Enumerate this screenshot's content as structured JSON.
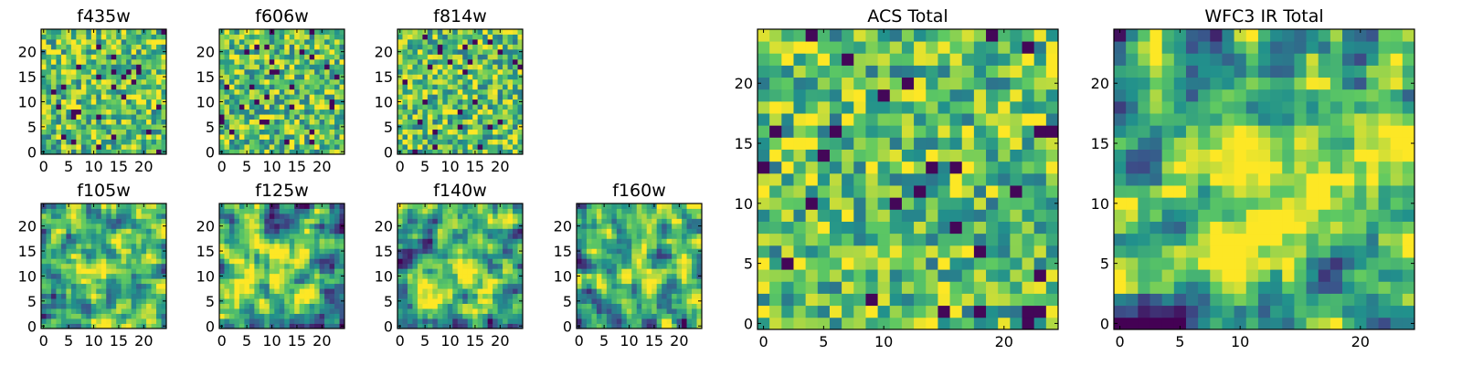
{
  "colormap": [
    "#440154",
    "#3b528b",
    "#21918c",
    "#5ec962",
    "#fde725"
  ],
  "chart_data": [
    {
      "type": "heatmap",
      "title": "f435w",
      "grid_size": 25,
      "xticks": [
        0,
        5,
        10,
        15,
        20
      ],
      "yticks": [
        0,
        5,
        10,
        15,
        20
      ],
      "xlim": [
        0,
        24
      ],
      "ylim": [
        0,
        24
      ],
      "texture": "noisy",
      "seed": 11
    },
    {
      "type": "heatmap",
      "title": "f606w",
      "grid_size": 25,
      "xticks": [
        0,
        5,
        10,
        15,
        20
      ],
      "yticks": [
        0,
        5,
        10,
        15,
        20
      ],
      "xlim": [
        0,
        24
      ],
      "ylim": [
        0,
        24
      ],
      "texture": "noisy",
      "seed": 23
    },
    {
      "type": "heatmap",
      "title": "f814w",
      "grid_size": 25,
      "xticks": [
        0,
        5,
        10,
        15,
        20
      ],
      "yticks": [
        0,
        5,
        10,
        15,
        20
      ],
      "xlim": [
        0,
        24
      ],
      "ylim": [
        0,
        24
      ],
      "texture": "noisy",
      "seed": 37
    },
    {
      "type": "heatmap",
      "title": "f105w",
      "grid_size": 25,
      "xticks": [
        0,
        5,
        10,
        15,
        20
      ],
      "yticks": [
        0,
        5,
        10,
        15,
        20
      ],
      "xlim": [
        0,
        24
      ],
      "ylim": [
        0,
        24
      ],
      "texture": "smooth",
      "seed": 41
    },
    {
      "type": "heatmap",
      "title": "f125w",
      "grid_size": 25,
      "xticks": [
        0,
        5,
        10,
        15,
        20
      ],
      "yticks": [
        0,
        5,
        10,
        15,
        20
      ],
      "xlim": [
        0,
        24
      ],
      "ylim": [
        0,
        24
      ],
      "texture": "smooth",
      "seed": 53
    },
    {
      "type": "heatmap",
      "title": "f140w",
      "grid_size": 25,
      "xticks": [
        0,
        5,
        10,
        15,
        20
      ],
      "yticks": [
        0,
        5,
        10,
        15,
        20
      ],
      "xlim": [
        0,
        24
      ],
      "ylim": [
        0,
        24
      ],
      "texture": "smooth",
      "seed": 67
    },
    {
      "type": "heatmap",
      "title": "f160w",
      "grid_size": 25,
      "xticks": [
        0,
        5,
        10,
        15,
        20
      ],
      "yticks": [
        0,
        5,
        10,
        15,
        20
      ],
      "xlim": [
        0,
        24
      ],
      "ylim": [
        0,
        24
      ],
      "texture": "smooth",
      "seed": 79
    },
    {
      "type": "heatmap",
      "title": "ACS Total",
      "grid_size": 25,
      "xticks": [
        0,
        5,
        10,
        20
      ],
      "yticks": [
        0,
        5,
        10,
        15,
        20
      ],
      "xlim": [
        0,
        24
      ],
      "ylim": [
        0,
        24
      ],
      "texture": "noisy",
      "seed": 83
    },
    {
      "type": "heatmap",
      "title": "WFC3 IR Total",
      "grid_size": 25,
      "xticks": [
        0,
        5,
        10,
        20
      ],
      "yticks": [
        0,
        5,
        10,
        15,
        20
      ],
      "xlim": [
        0,
        24
      ],
      "ylim": [
        0,
        24
      ],
      "texture": "smooth",
      "seed": 97
    }
  ]
}
